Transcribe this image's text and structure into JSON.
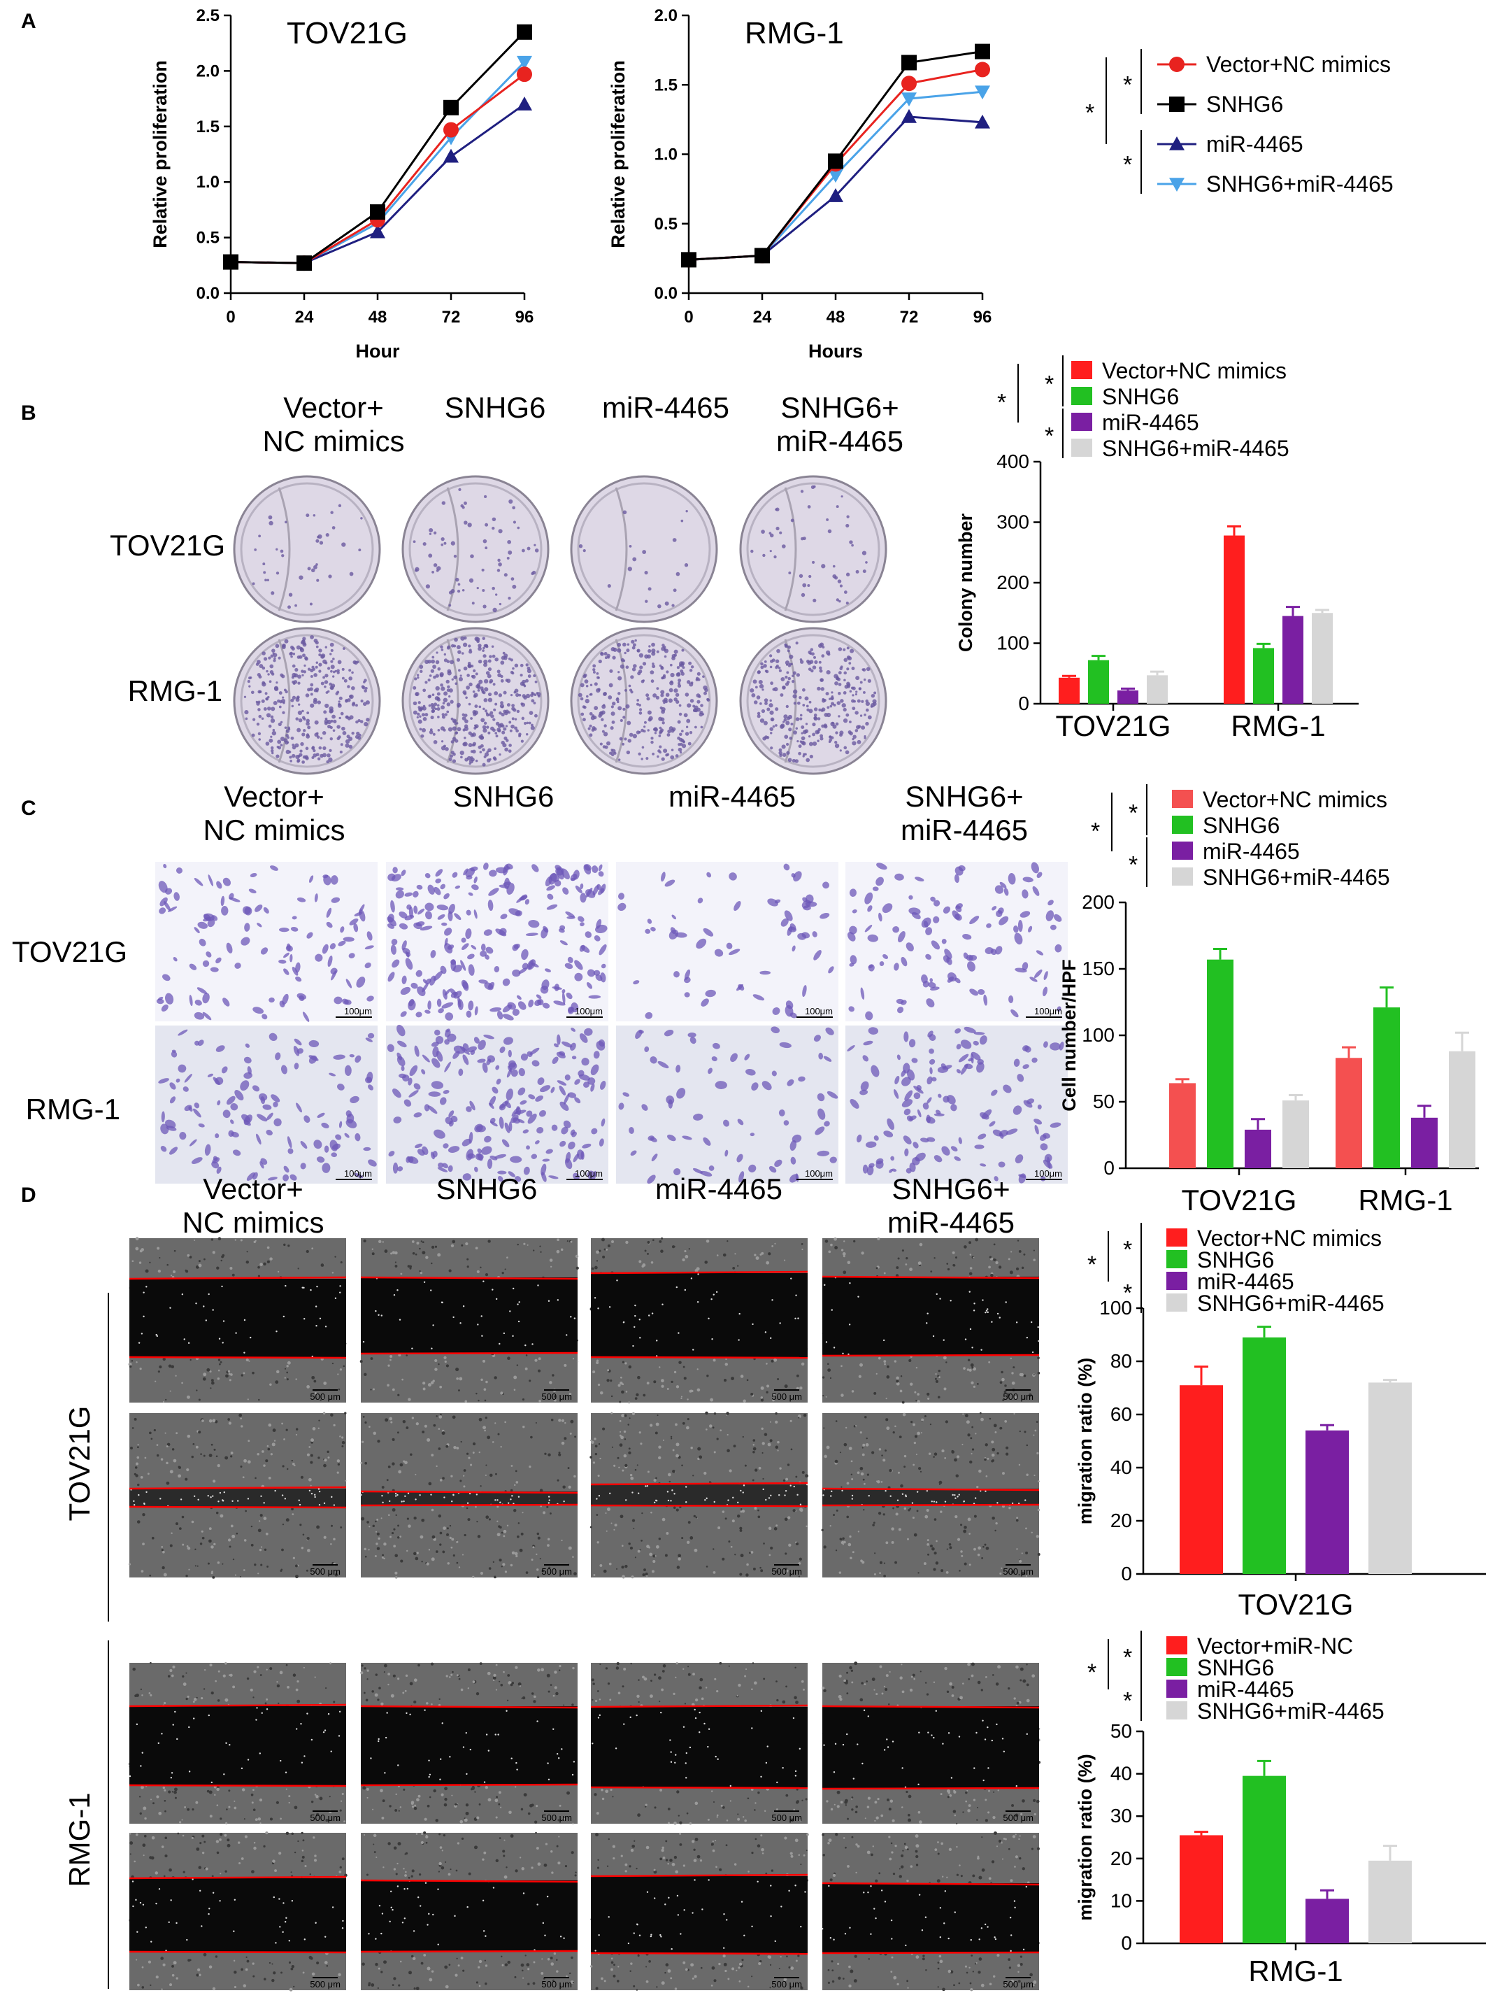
{
  "panel_labels": {
    "a": "A",
    "b": "B",
    "c": "C",
    "d": "D"
  },
  "conditions": [
    "Vector+\nNC mimics",
    "SNHG6",
    "miR-4465",
    "SNHG6+\nmiR-4465"
  ],
  "cell_lines": [
    "TOV21G",
    "RMG-1"
  ],
  "significance_mark": "*",
  "scale_bars": {
    "transwell": "100μm",
    "wound": "500 μm"
  },
  "legend_main": [
    "Vector+NC mimics",
    "SNHG6",
    "miR-4465",
    "SNHG6+miR-4465"
  ],
  "legend_rmg_wound": [
    "Vector+miR-NC",
    "SNHG6",
    "miR-4465",
    "SNHG6+miR-4465"
  ],
  "colors": {
    "line": [
      "#e8231f",
      "#000000",
      "#1f1f80",
      "#4aa3e8"
    ],
    "bar": [
      "#ff1e1e",
      "#22c022",
      "#7a1fa2",
      "#d6d6d6"
    ],
    "bar_c": [
      "#f45050",
      "#22c022",
      "#7a1fa2",
      "#d6d6d6"
    ],
    "colony_plate": "#ded8e6",
    "colony_dot": "#6a5aa0",
    "transwell_bg": "#f3f3fa",
    "transwell_cell": "#6e58b8",
    "wound_bg": "#6a6a6a",
    "wound_gap": "#0a0a0a",
    "wound_line": "#ff0000"
  },
  "chart_data": [
    {
      "type": "line",
      "panel": "A",
      "title": "TOV21G",
      "xlabel": "Hour",
      "ylabel": "Relative proliferation",
      "x": [
        0,
        24,
        48,
        72,
        96
      ],
      "xlim": [
        0,
        96
      ],
      "ylim": [
        0,
        2.5
      ],
      "yticks": [
        "0.0",
        "0.5",
        "1.0",
        "1.5",
        "2.0",
        "2.5"
      ],
      "series": [
        {
          "name": "Vector+NC mimics",
          "values": [
            0.28,
            0.27,
            0.66,
            1.47,
            1.97
          ]
        },
        {
          "name": "SNHG6",
          "values": [
            0.28,
            0.27,
            0.73,
            1.67,
            2.35
          ]
        },
        {
          "name": "miR-4465",
          "values": [
            0.28,
            0.27,
            0.55,
            1.23,
            1.7
          ]
        },
        {
          "name": "SNHG6+miR-4465",
          "values": [
            0.28,
            0.27,
            0.63,
            1.4,
            2.08
          ]
        }
      ]
    },
    {
      "type": "line",
      "panel": "A",
      "title": "RMG-1",
      "xlabel": "Hours",
      "ylabel": "Relative proliferation",
      "x": [
        0,
        24,
        48,
        72,
        96
      ],
      "xlim": [
        0,
        96
      ],
      "ylim": [
        0,
        2.0
      ],
      "yticks": [
        "0.0",
        "0.5",
        "1.0",
        "1.5",
        "2.0"
      ],
      "series": [
        {
          "name": "Vector+NC mimics",
          "values": [
            0.24,
            0.27,
            0.93,
            1.51,
            1.61
          ]
        },
        {
          "name": "SNHG6",
          "values": [
            0.24,
            0.27,
            0.95,
            1.66,
            1.74
          ]
        },
        {
          "name": "miR-4465",
          "values": [
            0.24,
            0.27,
            0.7,
            1.27,
            1.23
          ]
        },
        {
          "name": "SNHG6+miR-4465",
          "values": [
            0.24,
            0.27,
            0.85,
            1.4,
            1.45
          ]
        }
      ]
    },
    {
      "type": "bar",
      "panel": "B",
      "categories": [
        "TOV21G",
        "RMG-1"
      ],
      "ylabel": "Colony number",
      "ylim": [
        0,
        400
      ],
      "yticks": [
        "0",
        "100",
        "200",
        "300",
        "400"
      ],
      "series": [
        {
          "name": "Vector+NC mimics",
          "values": [
            43,
            278
          ],
          "errors": [
            3,
            15
          ]
        },
        {
          "name": "SNHG6",
          "values": [
            72,
            92
          ],
          "errors": [
            7,
            7
          ]
        },
        {
          "name": "miR-4465",
          "values": [
            22,
            145
          ],
          "errors": [
            3,
            15
          ]
        },
        {
          "name": "SNHG6+miR-4465",
          "values": [
            47,
            150
          ],
          "errors": [
            6,
            5
          ]
        }
      ]
    },
    {
      "type": "bar",
      "panel": "C",
      "categories": [
        "TOV21G",
        "RMG-1"
      ],
      "ylabel": "Cell number/HPF",
      "ylim": [
        0,
        200
      ],
      "yticks": [
        "0",
        "50",
        "100",
        "150",
        "200"
      ],
      "series": [
        {
          "name": "Vector+NC mimics",
          "values": [
            64,
            83
          ],
          "errors": [
            3,
            8
          ]
        },
        {
          "name": "SNHG6",
          "values": [
            157,
            121
          ],
          "errors": [
            8,
            15
          ]
        },
        {
          "name": "miR-4465",
          "values": [
            29,
            38
          ],
          "errors": [
            8,
            9
          ]
        },
        {
          "name": "SNHG6+miR-4465",
          "values": [
            51,
            88
          ],
          "errors": [
            4,
            14
          ]
        }
      ]
    },
    {
      "type": "bar",
      "panel": "D",
      "categories": [
        "TOV21G"
      ],
      "ylabel": "migration ratio (%)",
      "ylim": [
        0,
        100
      ],
      "yticks": [
        "0",
        "20",
        "40",
        "60",
        "80",
        "100"
      ],
      "series": [
        {
          "name": "Vector+NC mimics",
          "values": [
            71
          ],
          "errors": [
            7
          ]
        },
        {
          "name": "SNHG6",
          "values": [
            89
          ],
          "errors": [
            4
          ]
        },
        {
          "name": "miR-4465",
          "values": [
            54
          ],
          "errors": [
            2
          ]
        },
        {
          "name": "SNHG6+miR-4465",
          "values": [
            72
          ],
          "errors": [
            1
          ]
        }
      ]
    },
    {
      "type": "bar",
      "panel": "D",
      "categories": [
        "RMG-1"
      ],
      "ylabel": "migration ratio (%)",
      "ylim": [
        0,
        50
      ],
      "yticks": [
        "0",
        "10",
        "20",
        "30",
        "40",
        "50"
      ],
      "series": [
        {
          "name": "Vector+miR-NC",
          "values": [
            25.5
          ],
          "errors": [
            0.8
          ]
        },
        {
          "name": "SNHG6",
          "values": [
            39.5
          ],
          "errors": [
            3.5
          ]
        },
        {
          "name": "miR-4465",
          "values": [
            10.5
          ],
          "errors": [
            2
          ]
        },
        {
          "name": "SNHG6+miR-4465",
          "values": [
            19.5
          ],
          "errors": [
            3.5
          ]
        }
      ]
    }
  ]
}
